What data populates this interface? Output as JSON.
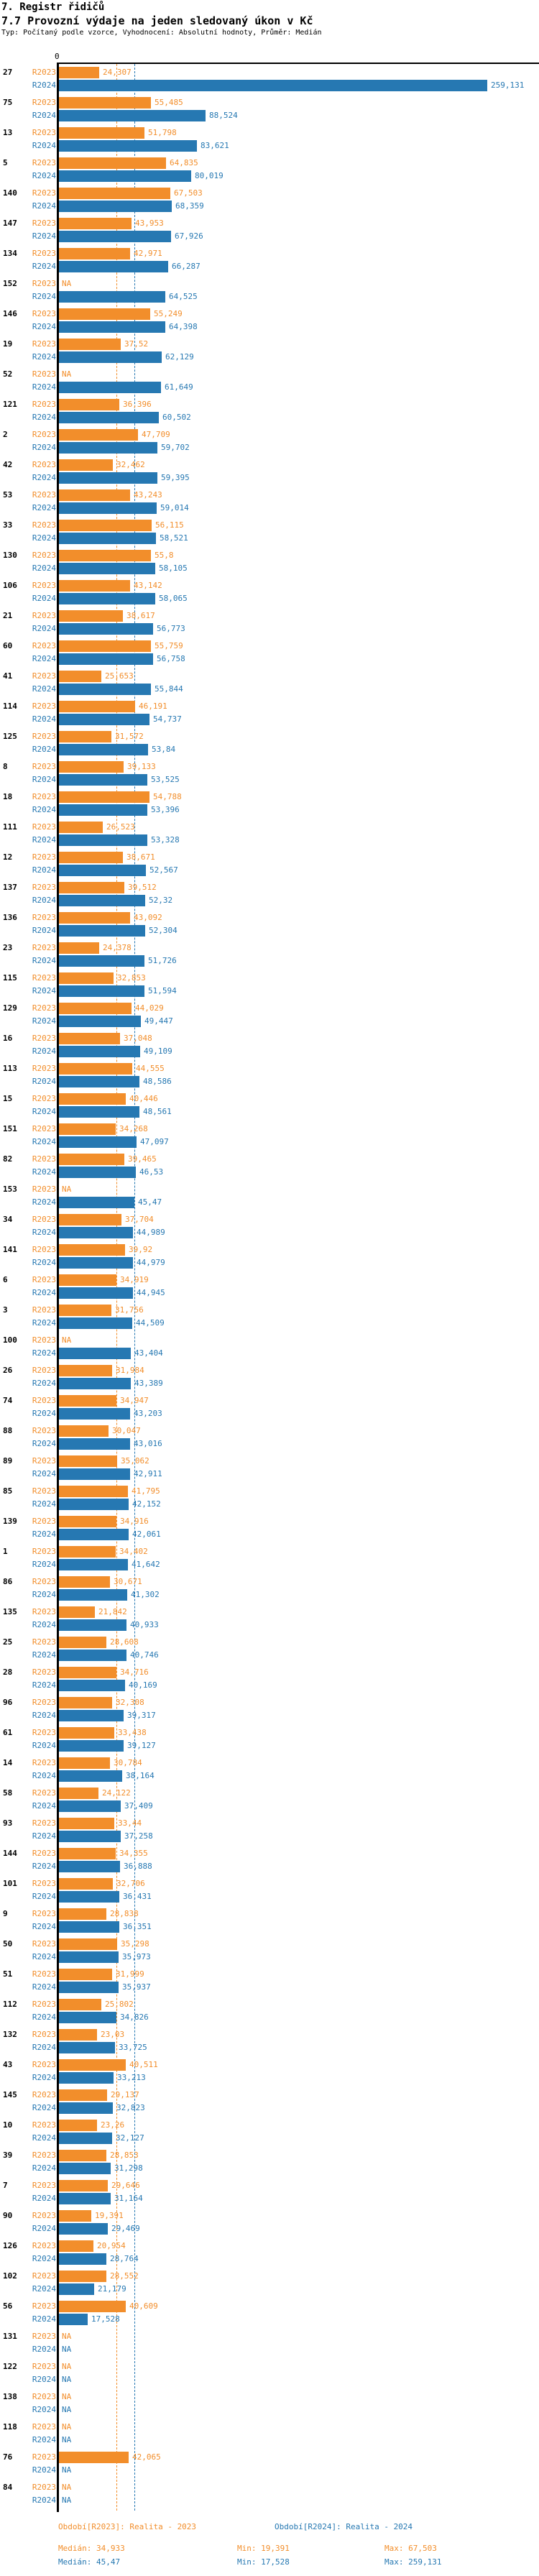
{
  "chart_data": {
    "type": "bar",
    "orientation": "horizontal",
    "title": "7. Registr řidičů",
    "subtitle": "7.7 Provozní výdaje na jeden sledovaný úkon v Kč",
    "meta": "Typ: Počítaný podle vzorce, Vyhodnocení: Absolutní hodnoty, Průměr: Medián",
    "value_unit": "Kč",
    "na_text": "NA",
    "axis": {
      "origin_label": "0",
      "xmin": 0,
      "xmax_estimate": 270
    },
    "series_labels": [
      "R2023",
      "R2024"
    ],
    "colors": {
      "r2023": "#F28E2B",
      "r2024": "#2678B2"
    },
    "medians": {
      "r2023": 34.933,
      "r2024": 45.47
    },
    "rows": [
      {
        "id": "27",
        "r2023": "24,307",
        "r2024": "259,131"
      },
      {
        "id": "75",
        "r2023": "55,485",
        "r2024": "88,524"
      },
      {
        "id": "13",
        "r2023": "51,798",
        "r2024": "83,621"
      },
      {
        "id": "5",
        "r2023": "64,835",
        "r2024": "80,019"
      },
      {
        "id": "140",
        "r2023": "67,503",
        "r2024": "68,359"
      },
      {
        "id": "147",
        "r2023": "43,953",
        "r2024": "67,926"
      },
      {
        "id": "134",
        "r2023": "42,971",
        "r2024": "66,287"
      },
      {
        "id": "152",
        "r2023": "NA",
        "r2024": "64,525"
      },
      {
        "id": "146",
        "r2023": "55,249",
        "r2024": "64,398"
      },
      {
        "id": "19",
        "r2023": "37,52",
        "r2024": "62,129"
      },
      {
        "id": "52",
        "r2023": "NA",
        "r2024": "61,649"
      },
      {
        "id": "121",
        "r2023": "36,396",
        "r2024": "60,502"
      },
      {
        "id": "2",
        "r2023": "47,709",
        "r2024": "59,702"
      },
      {
        "id": "42",
        "r2023": "32,462",
        "r2024": "59,395"
      },
      {
        "id": "53",
        "r2023": "43,243",
        "r2024": "59,014"
      },
      {
        "id": "33",
        "r2023": "56,115",
        "r2024": "58,521"
      },
      {
        "id": "130",
        "r2023": "55,8",
        "r2024": "58,105"
      },
      {
        "id": "106",
        "r2023": "43,142",
        "r2024": "58,065"
      },
      {
        "id": "21",
        "r2023": "38,617",
        "r2024": "56,773"
      },
      {
        "id": "60",
        "r2023": "55,759",
        "r2024": "56,758"
      },
      {
        "id": "41",
        "r2023": "25,653",
        "r2024": "55,844"
      },
      {
        "id": "114",
        "r2023": "46,191",
        "r2024": "54,737"
      },
      {
        "id": "125",
        "r2023": "31,572",
        "r2024": "53,84"
      },
      {
        "id": "8",
        "r2023": "39,133",
        "r2024": "53,525"
      },
      {
        "id": "18",
        "r2023": "54,788",
        "r2024": "53,396"
      },
      {
        "id": "111",
        "r2023": "26,523",
        "r2024": "53,328"
      },
      {
        "id": "12",
        "r2023": "38,671",
        "r2024": "52,567"
      },
      {
        "id": "137",
        "r2023": "39,512",
        "r2024": "52,32"
      },
      {
        "id": "136",
        "r2023": "43,092",
        "r2024": "52,304"
      },
      {
        "id": "23",
        "r2023": "24,378",
        "r2024": "51,726"
      },
      {
        "id": "115",
        "r2023": "32,853",
        "r2024": "51,594"
      },
      {
        "id": "129",
        "r2023": "44,029",
        "r2024": "49,447"
      },
      {
        "id": "16",
        "r2023": "37,048",
        "r2024": "49,109"
      },
      {
        "id": "113",
        "r2023": "44,555",
        "r2024": "48,586"
      },
      {
        "id": "15",
        "r2023": "40,446",
        "r2024": "48,561"
      },
      {
        "id": "151",
        "r2023": "34,268",
        "r2024": "47,097"
      },
      {
        "id": "82",
        "r2023": "39,465",
        "r2024": "46,53"
      },
      {
        "id": "153",
        "r2023": "NA",
        "r2024": "45,47"
      },
      {
        "id": "34",
        "r2023": "37,704",
        "r2024": "44,989"
      },
      {
        "id": "141",
        "r2023": "39,92",
        "r2024": "44,979"
      },
      {
        "id": "6",
        "r2023": "34,919",
        "r2024": "44,945"
      },
      {
        "id": "3",
        "r2023": "31,756",
        "r2024": "44,509"
      },
      {
        "id": "100",
        "r2023": "NA",
        "r2024": "43,404"
      },
      {
        "id": "26",
        "r2023": "31,984",
        "r2024": "43,389"
      },
      {
        "id": "74",
        "r2023": "34,947",
        "r2024": "43,203"
      },
      {
        "id": "88",
        "r2023": "30,047",
        "r2024": "43,016"
      },
      {
        "id": "89",
        "r2023": "35,062",
        "r2024": "42,911"
      },
      {
        "id": "85",
        "r2023": "41,795",
        "r2024": "42,152"
      },
      {
        "id": "139",
        "r2023": "34,916",
        "r2024": "42,061"
      },
      {
        "id": "1",
        "r2023": "34,402",
        "r2024": "41,642"
      },
      {
        "id": "86",
        "r2023": "30,671",
        "r2024": "41,302"
      },
      {
        "id": "135",
        "r2023": "21,842",
        "r2024": "40,933"
      },
      {
        "id": "25",
        "r2023": "28,608",
        "r2024": "40,746"
      },
      {
        "id": "28",
        "r2023": "34,716",
        "r2024": "40,169"
      },
      {
        "id": "96",
        "r2023": "32,308",
        "r2024": "39,317"
      },
      {
        "id": "61",
        "r2023": "33,438",
        "r2024": "39,127"
      },
      {
        "id": "14",
        "r2023": "30,784",
        "r2024": "38,164"
      },
      {
        "id": "58",
        "r2023": "24,122",
        "r2024": "37,409"
      },
      {
        "id": "93",
        "r2023": "33,44",
        "r2024": "37,258"
      },
      {
        "id": "144",
        "r2023": "34,355",
        "r2024": "36,888"
      },
      {
        "id": "101",
        "r2023": "32,706",
        "r2024": "36,431"
      },
      {
        "id": "9",
        "r2023": "28,838",
        "r2024": "36,351"
      },
      {
        "id": "50",
        "r2023": "35,298",
        "r2024": "35,973"
      },
      {
        "id": "51",
        "r2023": "31,999",
        "r2024": "35,937"
      },
      {
        "id": "112",
        "r2023": "25,802",
        "r2024": "34,826"
      },
      {
        "id": "132",
        "r2023": "23,03",
        "r2024": "33,725"
      },
      {
        "id": "43",
        "r2023": "40,511",
        "r2024": "33,213"
      },
      {
        "id": "145",
        "r2023": "29,137",
        "r2024": "32,823"
      },
      {
        "id": "10",
        "r2023": "23,26",
        "r2024": "32,127"
      },
      {
        "id": "39",
        "r2023": "28,853",
        "r2024": "31,298"
      },
      {
        "id": "7",
        "r2023": "29,646",
        "r2024": "31,164"
      },
      {
        "id": "90",
        "r2023": "19,391",
        "r2024": "29,469"
      },
      {
        "id": "126",
        "r2023": "20,954",
        "r2024": "28,764"
      },
      {
        "id": "102",
        "r2023": "28,552",
        "r2024": "21,179"
      },
      {
        "id": "56",
        "r2023": "40,609",
        "r2024": "17,528"
      },
      {
        "id": "131",
        "r2023": "NA",
        "r2024": "NA"
      },
      {
        "id": "122",
        "r2023": "NA",
        "r2024": "NA"
      },
      {
        "id": "138",
        "r2023": "NA",
        "r2024": "NA"
      },
      {
        "id": "118",
        "r2023": "NA",
        "r2024": "NA"
      },
      {
        "id": "76",
        "r2023": "42,065",
        "r2024": "NA"
      },
      {
        "id": "84",
        "r2023": "NA",
        "r2024": "NA"
      }
    ],
    "legend_position": "bottom"
  },
  "footer": {
    "r2023_title": "Období[R2023]: Realita - 2023",
    "r2024_title": "Období[R2024]: Realita - 2024",
    "r2023_median": "Medián: 34,933",
    "r2023_min": "Min: 19,391",
    "r2023_max": "Max: 67,503",
    "r2024_median": "Medián: 45,47",
    "r2024_min": "Min: 17,528",
    "r2024_max": "Max: 259,131"
  }
}
